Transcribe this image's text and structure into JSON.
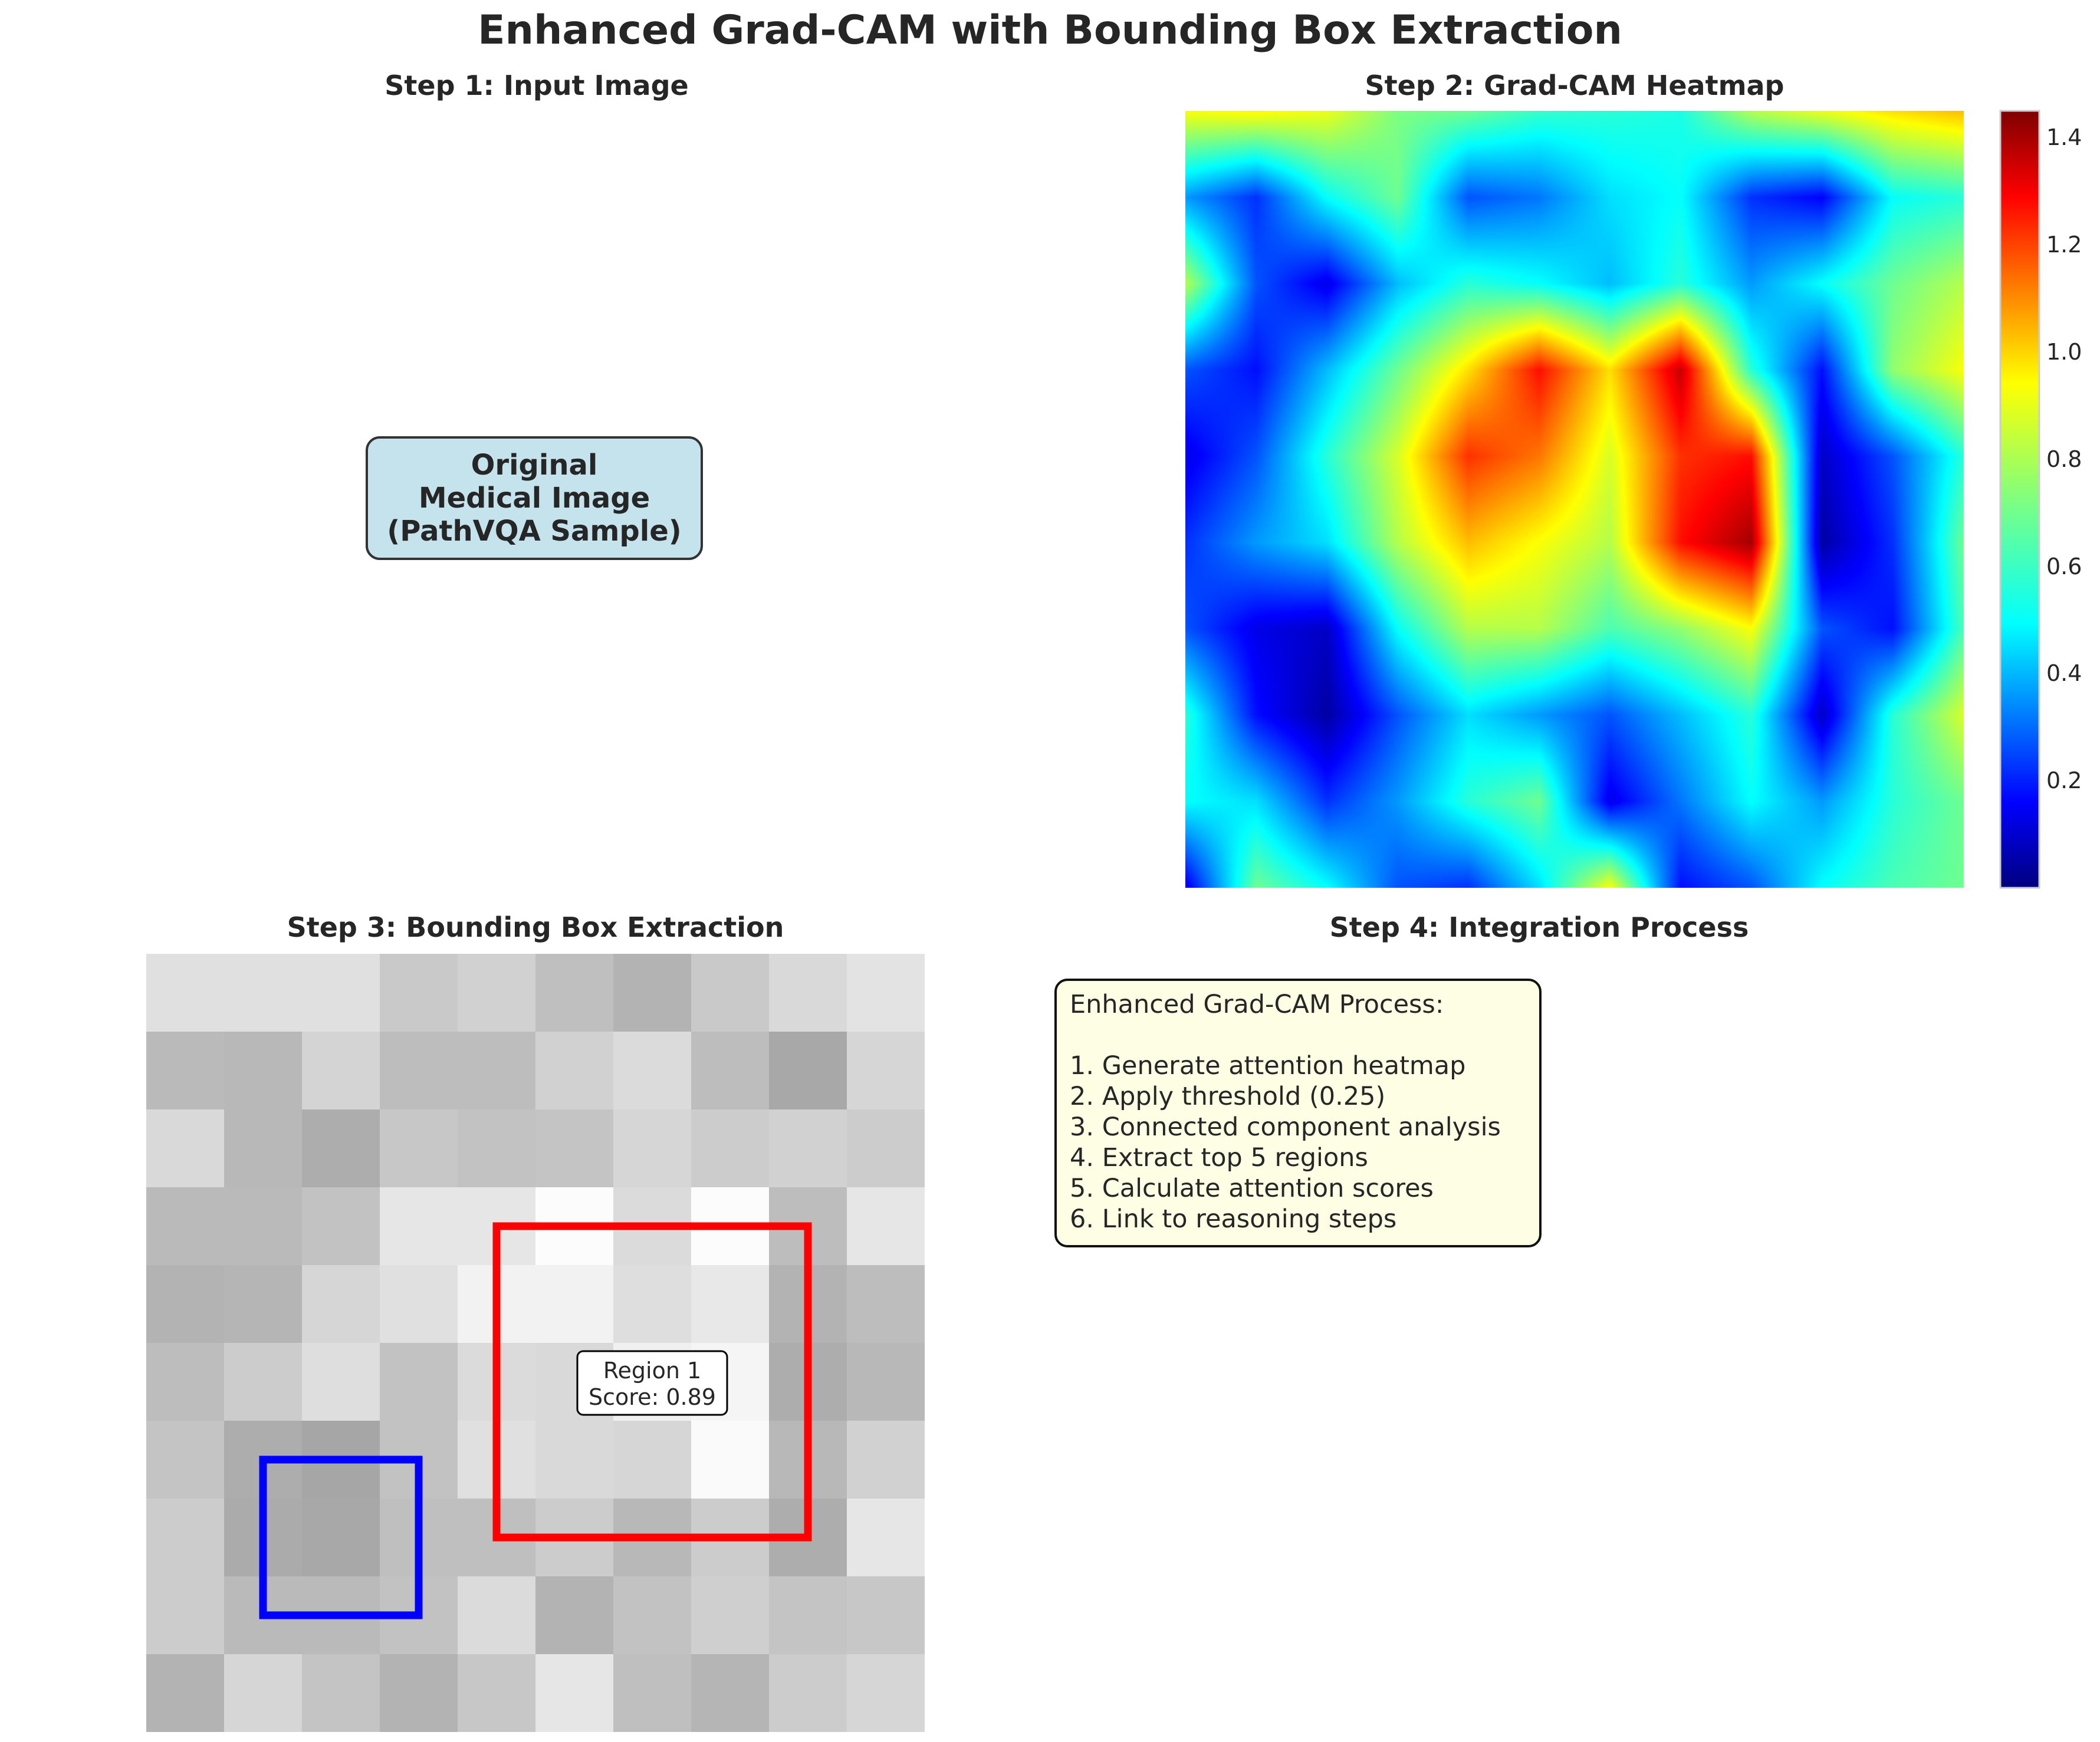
{
  "title": "Enhanced Grad-CAM with Bounding Box Extraction",
  "panels": {
    "step1": {
      "title": "Step 1: Input Image",
      "box_lines": [
        "Original",
        "Medical Image",
        "(PathVQA Sample)"
      ]
    },
    "step2": {
      "title": "Step 2: Grad-CAM Heatmap"
    },
    "step3": {
      "title": "Step 3: Bounding Box Extraction"
    },
    "step4": {
      "title": "Step 4: Integration Process"
    }
  },
  "colorbar": {
    "ticks": [
      "0.2",
      "0.4",
      "0.6",
      "0.8",
      "1.0",
      "1.2",
      "1.4"
    ],
    "colormap": "jet",
    "range": [
      0.0,
      1.45
    ]
  },
  "heatmap": {
    "grid": [
      [
        0.9,
        0.92,
        0.88,
        0.72,
        0.7,
        0.62,
        0.6,
        0.58,
        0.8,
        0.88,
        0.95,
        1.0
      ],
      [
        0.4,
        0.25,
        0.55,
        0.7,
        0.3,
        0.35,
        0.5,
        0.55,
        0.25,
        0.18,
        0.55,
        0.6
      ],
      [
        0.8,
        0.3,
        0.15,
        0.45,
        0.6,
        0.55,
        0.45,
        0.6,
        0.4,
        0.55,
        0.7,
        0.8
      ],
      [
        0.3,
        0.2,
        0.45,
        0.7,
        0.95,
        1.25,
        0.95,
        1.35,
        0.6,
        0.2,
        0.75,
        0.9
      ],
      [
        0.15,
        0.3,
        0.6,
        0.85,
        1.2,
        1.1,
        0.85,
        1.2,
        1.25,
        0.1,
        0.3,
        0.6
      ],
      [
        0.25,
        0.4,
        0.5,
        0.8,
        1.0,
        0.9,
        0.8,
        1.25,
        1.4,
        0.05,
        0.25,
        0.7
      ],
      [
        0.3,
        0.15,
        0.1,
        0.55,
        0.8,
        0.8,
        0.65,
        0.75,
        0.9,
        0.3,
        0.2,
        0.65
      ],
      [
        0.6,
        0.2,
        0.05,
        0.3,
        0.5,
        0.4,
        0.3,
        0.45,
        0.6,
        0.1,
        0.6,
        0.85
      ],
      [
        0.55,
        0.5,
        0.25,
        0.4,
        0.6,
        0.7,
        0.15,
        0.35,
        0.55,
        0.4,
        0.6,
        0.7
      ],
      [
        0.15,
        0.7,
        0.55,
        0.3,
        0.25,
        0.5,
        0.9,
        0.2,
        0.3,
        0.55,
        0.65,
        0.7
      ]
    ]
  },
  "grayscale": {
    "grid": [
      [
        0.88,
        0.88,
        0.88,
        0.79,
        0.82,
        0.75,
        0.7,
        0.79,
        0.85,
        0.89
      ],
      [
        0.73,
        0.72,
        0.83,
        0.74,
        0.74,
        0.82,
        0.86,
        0.74,
        0.66,
        0.84
      ],
      [
        0.85,
        0.72,
        0.68,
        0.78,
        0.76,
        0.77,
        0.84,
        0.8,
        0.82,
        0.8
      ],
      [
        0.73,
        0.73,
        0.76,
        0.9,
        0.9,
        0.99,
        0.86,
        0.99,
        0.74,
        0.9
      ],
      [
        0.7,
        0.71,
        0.84,
        0.88,
        0.95,
        0.95,
        0.87,
        0.91,
        0.7,
        0.74
      ],
      [
        0.74,
        0.8,
        0.87,
        0.76,
        0.86,
        0.85,
        0.94,
        0.96,
        0.68,
        0.72
      ],
      [
        0.77,
        0.68,
        0.65,
        0.76,
        0.88,
        0.85,
        0.84,
        0.98,
        0.72,
        0.82
      ],
      [
        0.8,
        0.67,
        0.66,
        0.75,
        0.75,
        0.8,
        0.72,
        0.8,
        0.68,
        0.9
      ],
      [
        0.8,
        0.73,
        0.73,
        0.76,
        0.86,
        0.7,
        0.76,
        0.81,
        0.77,
        0.78
      ],
      [
        0.7,
        0.84,
        0.77,
        0.7,
        0.78,
        0.9,
        0.75,
        0.71,
        0.8,
        0.84
      ]
    ],
    "region_label_lines": [
      "Region 1",
      "Score: 0.89"
    ],
    "red_box": {
      "col0": 4.5,
      "row0": 3.5,
      "col1": 8.5,
      "row1": 7.5,
      "color": "#ff0000"
    },
    "blue_box": {
      "col0": 1.5,
      "row0": 6.5,
      "col1": 3.5,
      "row1": 8.5,
      "color": "#0000ff"
    }
  },
  "process": {
    "lines": [
      "Enhanced Grad-CAM Process:",
      "",
      "1. Generate attention heatmap",
      "2. Apply threshold (0.25)",
      "3. Connected component analysis",
      "4. Extract top 5 regions",
      "5. Calculate attention scores",
      "6. Link to reasoning steps"
    ]
  }
}
